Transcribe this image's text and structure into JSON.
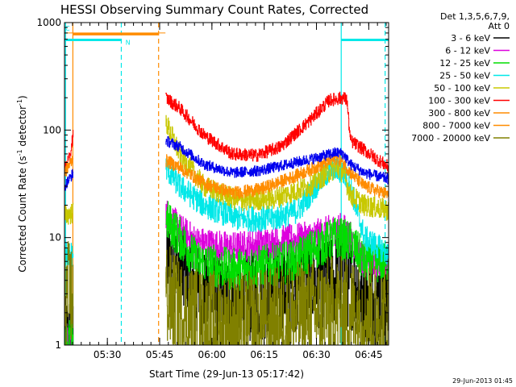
{
  "chart_data": {
    "type": "line",
    "title": "HESSI Observing Summary Count Rates, Corrected",
    "xlabel": "Start Time (29-Jun-13 05:17:42)",
    "ylabel_main": "Corrected Count Rate (s",
    "ylabel_exp1": "-1",
    "ylabel_mid": " detector",
    "ylabel_exp2": "-1",
    "ylabel_end": ")",
    "y_scale": "log",
    "ylim": [
      1,
      1000
    ],
    "xlim_minutes": [
      0,
      93
    ],
    "yticks": [
      {
        "value": 1,
        "label": "1"
      },
      {
        "value": 10,
        "label": "10"
      },
      {
        "value": 100,
        "label": "100"
      },
      {
        "value": 1000,
        "label": "1000"
      }
    ],
    "xticks": [
      {
        "minute": 12.3,
        "label": "05:30"
      },
      {
        "minute": 27.3,
        "label": "05:45"
      },
      {
        "minute": 42.3,
        "label": "06:00"
      },
      {
        "minute": 57.3,
        "label": "06:15"
      },
      {
        "minute": 72.3,
        "label": "06:30"
      },
      {
        "minute": 87.3,
        "label": "06:45"
      }
    ],
    "legend_header": [
      "Det 1,3,5,6,7,9,",
      "Att 0"
    ],
    "data_gap_minutes": [
      2.5,
      29.0
    ],
    "series": [
      {
        "name": "3 - 6 keV",
        "color": "#000000",
        "noise": 0.45,
        "points": [
          [
            0,
            1.0
          ],
          [
            29,
            7
          ],
          [
            33,
            5
          ],
          [
            38,
            3
          ],
          [
            45,
            2.5
          ],
          [
            55,
            3
          ],
          [
            62,
            3.5
          ],
          [
            70,
            4
          ],
          [
            78,
            4
          ],
          [
            82,
            4
          ],
          [
            86,
            3
          ],
          [
            93,
            2.5
          ]
        ]
      },
      {
        "name": "6 - 12 keV",
        "color": "#dd00dd",
        "noise": 0.15,
        "points": [
          [
            0,
            1.0
          ],
          [
            29,
            17
          ],
          [
            33,
            12
          ],
          [
            38,
            9
          ],
          [
            48,
            8
          ],
          [
            60,
            9
          ],
          [
            70,
            10
          ],
          [
            78,
            12
          ],
          [
            80,
            12
          ],
          [
            82,
            10
          ],
          [
            86,
            6
          ],
          [
            93,
            6
          ]
        ]
      },
      {
        "name": "12 - 25 keV",
        "color": "#00dd00",
        "noise": 0.2,
        "points": [
          [
            0,
            1.0
          ],
          [
            29,
            15
          ],
          [
            33,
            10
          ],
          [
            38,
            6
          ],
          [
            48,
            5
          ],
          [
            58,
            5.5
          ],
          [
            66,
            6
          ],
          [
            72,
            8
          ],
          [
            78,
            10
          ],
          [
            82,
            9
          ],
          [
            86,
            6
          ],
          [
            93,
            6
          ]
        ]
      },
      {
        "name": "25 - 50 keV",
        "color": "#00e8e8",
        "noise": 0.12,
        "points": [
          [
            0,
            7
          ],
          [
            2.5,
            7
          ],
          [
            29,
            45
          ],
          [
            33,
            30
          ],
          [
            40,
            20
          ],
          [
            50,
            15
          ],
          [
            60,
            15
          ],
          [
            67,
            18
          ],
          [
            72,
            30
          ],
          [
            77,
            45
          ],
          [
            80,
            40
          ],
          [
            82,
            30
          ],
          [
            86,
            10
          ],
          [
            93,
            7
          ]
        ]
      },
      {
        "name": "50 - 100 keV",
        "color": "#c8c800",
        "noise": 0.1,
        "points": [
          [
            0,
            16
          ],
          [
            2.5,
            17
          ],
          [
            29,
            120
          ],
          [
            33,
            60
          ],
          [
            40,
            30
          ],
          [
            50,
            22
          ],
          [
            60,
            23
          ],
          [
            70,
            30
          ],
          [
            78,
            45
          ],
          [
            80,
            40
          ],
          [
            82,
            25
          ],
          [
            86,
            20
          ],
          [
            93,
            18
          ]
        ]
      },
      {
        "name": "100 - 300 keV",
        "color": "#ff0000",
        "noise": 0.06,
        "points": [
          [
            0,
            45
          ],
          [
            1.5,
            55
          ],
          [
            2.5,
            95
          ],
          [
            29,
            200
          ],
          [
            33,
            160
          ],
          [
            40,
            90
          ],
          [
            48,
            60
          ],
          [
            55,
            58
          ],
          [
            62,
            70
          ],
          [
            70,
            120
          ],
          [
            76,
            190
          ],
          [
            80,
            200
          ],
          [
            81,
            190
          ],
          [
            82,
            80
          ],
          [
            86,
            65
          ],
          [
            93,
            45
          ]
        ]
      },
      {
        "name": "300 - 800 keV",
        "color": "#ff8c00",
        "noise": 0.06,
        "points": [
          [
            0,
            40
          ],
          [
            2.5,
            55
          ],
          [
            29,
            52
          ],
          [
            33,
            45
          ],
          [
            40,
            32
          ],
          [
            48,
            26
          ],
          [
            56,
            28
          ],
          [
            64,
            35
          ],
          [
            72,
            45
          ],
          [
            78,
            55
          ],
          [
            80,
            50
          ],
          [
            82,
            40
          ],
          [
            86,
            30
          ],
          [
            93,
            25
          ]
        ]
      },
      {
        "name": "800 - 7000 keV",
        "color": "#ff8c00",
        "noise": 0.0,
        "points": [
          [
            0,
            800
          ],
          [
            29,
            800
          ]
        ]
      },
      {
        "name": "7000 - 20000 keV",
        "color": "#808000",
        "noise": 0.5,
        "points": [
          [
            0,
            3
          ],
          [
            29,
            3
          ],
          [
            33,
            2
          ],
          [
            40,
            1.6
          ],
          [
            50,
            1.5
          ],
          [
            60,
            1.7
          ],
          [
            70,
            2
          ],
          [
            78,
            2.2
          ],
          [
            86,
            2
          ],
          [
            93,
            1.8
          ]
        ]
      },
      {
        "name": "blue (unlabeled in legend)",
        "color": "#0000ee",
        "noise": 0.05,
        "points": [
          [
            0,
            30
          ],
          [
            2.5,
            40
          ],
          [
            29,
            80
          ],
          [
            33,
            70
          ],
          [
            40,
            48
          ],
          [
            48,
            40
          ],
          [
            56,
            42
          ],
          [
            64,
            48
          ],
          [
            72,
            55
          ],
          [
            78,
            62
          ],
          [
            80,
            60
          ],
          [
            82,
            48
          ],
          [
            86,
            40
          ],
          [
            93,
            35
          ]
        ]
      }
    ],
    "vertical_markers": [
      {
        "minute": 0.3,
        "color": "#00e8e8",
        "style": "solid"
      },
      {
        "minute": 2.4,
        "color": "#ff8c00",
        "style": "solid"
      },
      {
        "minute": 16.3,
        "color": "#00e8e8",
        "style": "dashed"
      },
      {
        "minute": 27.0,
        "color": "#ff8c00",
        "style": "dashed"
      },
      {
        "minute": 79.4,
        "color": "#00e8e8",
        "style": "solid"
      },
      {
        "minute": 92.0,
        "color": "#00e8e8",
        "style": "dashed"
      }
    ],
    "top_bars": [
      {
        "from": 0,
        "to": 16.3,
        "value": 690,
        "color": "#00e8e8"
      },
      {
        "from": 2.4,
        "to": 27.0,
        "value": 780,
        "color": "#ff8c00"
      },
      {
        "from": 79.4,
        "to": 93,
        "value": 690,
        "color": "#00e8e8"
      }
    ],
    "bar_annotation": {
      "text": "N",
      "minute": 17.5,
      "color": "#00e8e8"
    },
    "corner_annotation": {
      "text": "C",
      "color": "#00e8e8"
    }
  },
  "footer_date": "29-Jun-2013 01:45"
}
